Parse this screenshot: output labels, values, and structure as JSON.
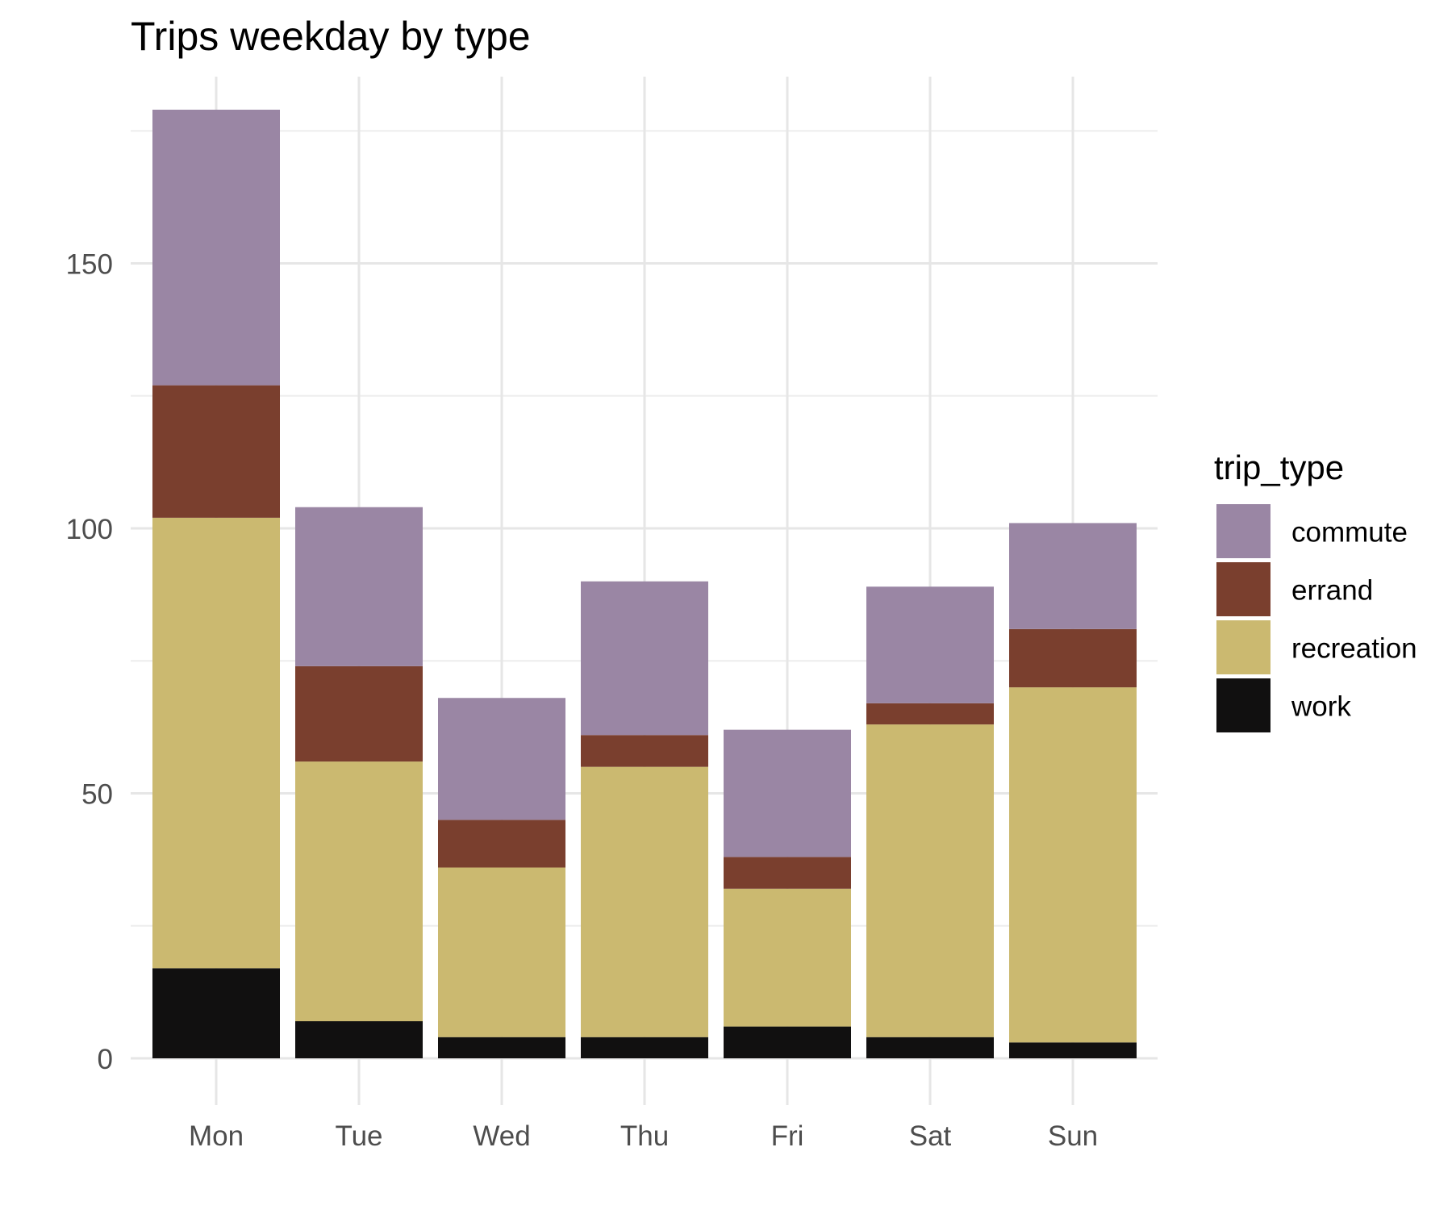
{
  "chart_data": {
    "type": "bar",
    "stacked": true,
    "title": "Trips weekday by type",
    "xlabel": "",
    "ylabel": "",
    "categories": [
      "Mon",
      "Tue",
      "Wed",
      "Thu",
      "Fri",
      "Sat",
      "Sun"
    ],
    "series": [
      {
        "name": "work",
        "color": "#111010",
        "values": [
          17,
          7,
          4,
          4,
          6,
          4,
          3
        ]
      },
      {
        "name": "recreation",
        "color": "#CBB970",
        "values": [
          85,
          49,
          32,
          51,
          26,
          59,
          67
        ]
      },
      {
        "name": "errand",
        "color": "#7A3F2E",
        "values": [
          25,
          18,
          9,
          6,
          6,
          4,
          11
        ]
      },
      {
        "name": "commute",
        "color": "#9A86A4",
        "values": [
          52,
          30,
          23,
          29,
          24,
          22,
          20
        ]
      }
    ],
    "ylim": [
      0,
      186
    ],
    "yticks": [
      0,
      50,
      100,
      150
    ],
    "grid": true,
    "legend": {
      "title": "trip_type",
      "position": "right",
      "order": [
        "commute",
        "errand",
        "recreation",
        "work"
      ]
    }
  }
}
